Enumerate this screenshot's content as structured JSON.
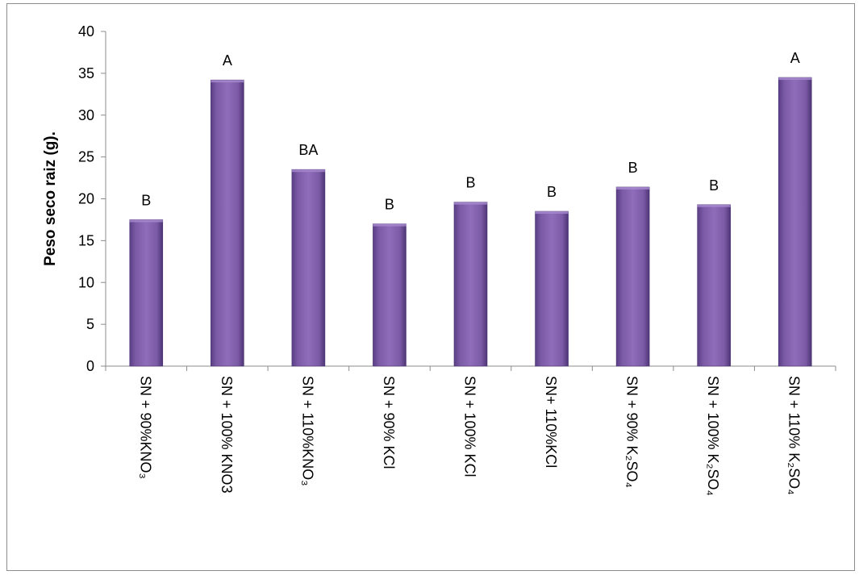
{
  "chart_data": {
    "type": "bar",
    "title": "",
    "xlabel": "",
    "ylabel": "Peso seco raiz (g).",
    "ylim": [
      0,
      40
    ],
    "yticks": [
      0,
      5,
      10,
      15,
      20,
      25,
      30,
      35,
      40
    ],
    "grid": false,
    "legend": "none",
    "bar_color": "#7b5aa6",
    "categories": [
      "SN + 90%KNO₃",
      "SN + 100% KNO3",
      "SN + 110%KNO₃",
      "SN + 90% KCl",
      "SN + 100% KCl",
      "SN+ 110%KCl",
      "SN + 90% K₂SO₄",
      "SN + 100% K₂SO₄",
      "SN + 110% K₂SO₄"
    ],
    "values": [
      17.5,
      34.2,
      23.5,
      17.0,
      19.6,
      18.5,
      21.4,
      19.3,
      34.5
    ],
    "annotations": [
      "B",
      "A",
      "BA",
      "B",
      "B",
      "B",
      "B",
      "B",
      "A"
    ]
  }
}
